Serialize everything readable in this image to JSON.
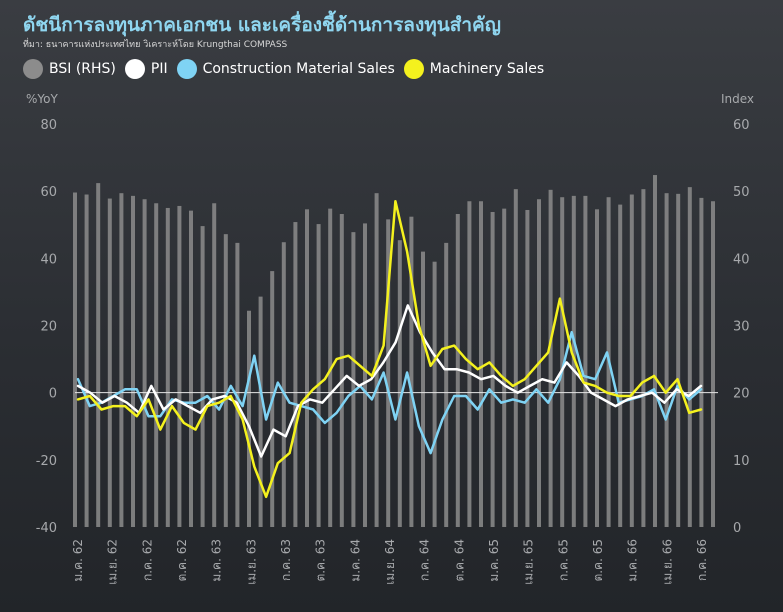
{
  "title": "ดัชนีการลงทุนภาคเอกชน และเครื่องชี้ด้านการลงทุนสำคัญ",
  "source": "ที่มา: ธนาคารแห่งประเทศไทย วิเคราะห์โดย Krungthai COMPASS",
  "legend": [
    {
      "label": "BSI (RHS)",
      "color": "#8c8c8c"
    },
    {
      "label": "PII",
      "color": "#ffffff"
    },
    {
      "label": "Construction Material Sales",
      "color": "#7fd3f4"
    },
    {
      "label": "Machinery Sales",
      "color": "#f4f11e"
    }
  ],
  "chart_data": {
    "type": "bar+line",
    "y_left": {
      "unit": "%YoY",
      "min": -40,
      "max": 80,
      "ticks": [
        80,
        60,
        40,
        20,
        0,
        -20,
        -40
      ]
    },
    "y_right": {
      "unit": "Index",
      "min": 0,
      "max": 60,
      "ticks": [
        60,
        50,
        40,
        30,
        20,
        10,
        0
      ]
    },
    "x_labels": [
      "ม.ค. 62",
      "เม.ย. 62",
      "ก.ค. 62",
      "ต.ค. 62",
      "ม.ค. 63",
      "เม.ย. 63",
      "ก.ค. 63",
      "ต.ค. 63",
      "ม.ค. 64",
      "เม.ย. 64",
      "ก.ค. 64",
      "ต.ค. 64",
      "ม.ค. 65",
      "เม.ย. 65",
      "ก.ค. 65",
      "ต.ค. 65",
      "ม.ค. 66",
      "เม.ย. 66",
      "ก.ค. 66"
    ],
    "series": [
      {
        "name": "BSI (RHS)",
        "type": "bar",
        "axis": "right",
        "color": "#8c8c8c",
        "values": [
          49.8,
          49.5,
          51.2,
          48.9,
          49.7,
          49.3,
          48.8,
          48.2,
          47.5,
          47.8,
          47.1,
          44.8,
          48.2,
          43.6,
          42.3,
          32.2,
          34.3,
          38.1,
          42.4,
          45.4,
          47.3,
          45.1,
          47.4,
          46.6,
          43.9,
          45.2,
          49.7,
          45.8,
          42.7,
          46.2,
          41,
          39.5,
          42.3,
          46.6,
          48.5,
          48.5,
          46.9,
          47.4,
          50.3,
          47.2,
          48.8,
          50.2,
          49.1,
          49.3,
          49.3,
          47.3,
          49.1,
          48,
          49.5,
          50.3,
          52.4,
          49.7,
          49.6,
          50.6,
          49,
          48.5
        ]
      },
      {
        "name": "PII",
        "type": "line",
        "axis": "left",
        "color": "#ffffff",
        "values": [
          2,
          0,
          -3,
          -1,
          -3,
          -6,
          2,
          -5,
          -2,
          -4,
          -6,
          -2,
          -1,
          -3,
          -10,
          -19,
          -11,
          -13,
          -4,
          -2,
          -3,
          1,
          5,
          2,
          4,
          9,
          15,
          26,
          18,
          12,
          7,
          7,
          6,
          4,
          5,
          2,
          0,
          2,
          4,
          3,
          9,
          5,
          0,
          -2,
          -4,
          -2,
          -1,
          0,
          -3,
          1,
          -1,
          2
        ]
      },
      {
        "name": "Construction Material Sales",
        "type": "line",
        "axis": "left",
        "color": "#7fd3f4",
        "values": [
          4,
          -4,
          -3,
          -1,
          1,
          1,
          -7,
          -7,
          -2,
          -3,
          -3,
          -1,
          -5,
          2,
          -4,
          11,
          -8,
          3,
          -3,
          -4,
          -5,
          -9,
          -6,
          -1,
          2,
          -2,
          6,
          -8,
          6,
          -10,
          -18,
          -8,
          -1,
          -1,
          -5,
          1,
          -3,
          -2,
          -3,
          1,
          -3,
          4,
          18,
          5,
          4,
          12,
          -3,
          -2,
          -1,
          1,
          -8,
          2,
          -2,
          1
        ]
      },
      {
        "name": "Machinery Sales",
        "type": "line",
        "axis": "left",
        "color": "#f4f11e",
        "values": [
          -2,
          -1,
          -5,
          -4,
          -4,
          -7,
          -2,
          -11,
          -4,
          -9,
          -11,
          -4,
          -3,
          -1,
          -8,
          -22,
          -31,
          -21,
          -18,
          -3,
          1,
          4,
          10,
          11,
          8,
          5,
          14,
          57,
          42,
          20,
          8,
          13,
          14,
          10,
          7,
          9,
          5,
          2,
          4,
          8,
          12,
          28,
          12,
          3,
          2,
          0,
          -1,
          -1,
          3,
          5,
          0,
          4,
          -6,
          -5
        ]
      }
    ]
  }
}
